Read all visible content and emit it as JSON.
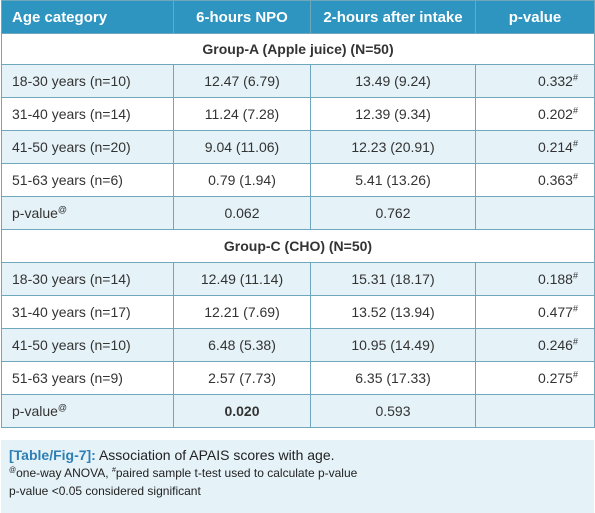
{
  "header": {
    "col1": "Age category",
    "col2": "6-hours NPO",
    "col3": "2-hours after intake",
    "col4": "p-value"
  },
  "groupA": {
    "title": "Group-A (Apple juice) (N=50)",
    "rows": [
      {
        "age": "18-30 years (n=10)",
        "npo": "12.47 (6.79)",
        "after": "13.49 (9.24)",
        "p": "0.332",
        "mark": "#"
      },
      {
        "age": "31-40 years (n=14)",
        "npo": "11.24 (7.28)",
        "after": "12.39 (9.34)",
        "p": "0.202",
        "mark": "#"
      },
      {
        "age": "41-50 years (n=20)",
        "npo": "9.04 (11.06)",
        "after": "12.23 (20.91)",
        "p": "0.214",
        "mark": "#"
      },
      {
        "age": "51-63 years (n=6)",
        "npo": "0.79 (1.94)",
        "after": "5.41 (13.26)",
        "p": "0.363",
        "mark": "#"
      }
    ],
    "pvalue": {
      "label": "p-value",
      "mark": "@",
      "npo": "0.062",
      "after": "0.762"
    }
  },
  "groupC": {
    "title": "Group-C (CHO) (N=50)",
    "rows": [
      {
        "age": "18-30 years (n=14)",
        "npo": "12.49 (11.14)",
        "after": "15.31 (18.17)",
        "p": "0.188",
        "mark": "#"
      },
      {
        "age": "31-40 years (n=17)",
        "npo": "12.21 (7.69)",
        "after": "13.52 (13.94)",
        "p": "0.477",
        "mark": "#"
      },
      {
        "age": "41-50 years (n=10)",
        "npo": "6.48 (5.38)",
        "after": "10.95 (14.49)",
        "p": "0.246",
        "mark": "#"
      },
      {
        "age": "51-63 years (n=9)",
        "npo": "2.57 (7.73)",
        "after": "6.35 (17.33)",
        "p": "0.275",
        "mark": "#"
      }
    ],
    "pvalue": {
      "label": "p-value",
      "mark": "@",
      "npo": "0.020",
      "after": "0.593"
    }
  },
  "caption": {
    "tag": "[Table/Fig-7]:",
    "title": "Association of APAIS scores with age.",
    "note1_mark_a": "@",
    "note1_a": "one-way ANOVA, ",
    "note1_mark_b": "#",
    "note1_b": "paired sample t-test used to calculate p-value",
    "note2": "p-value <0.05 considered significant"
  },
  "colors": {
    "header_bg": "#2e95c1",
    "shade": "#e5f2f8",
    "border": "#6fa8bd",
    "caption_tag": "#2e7fb5"
  }
}
